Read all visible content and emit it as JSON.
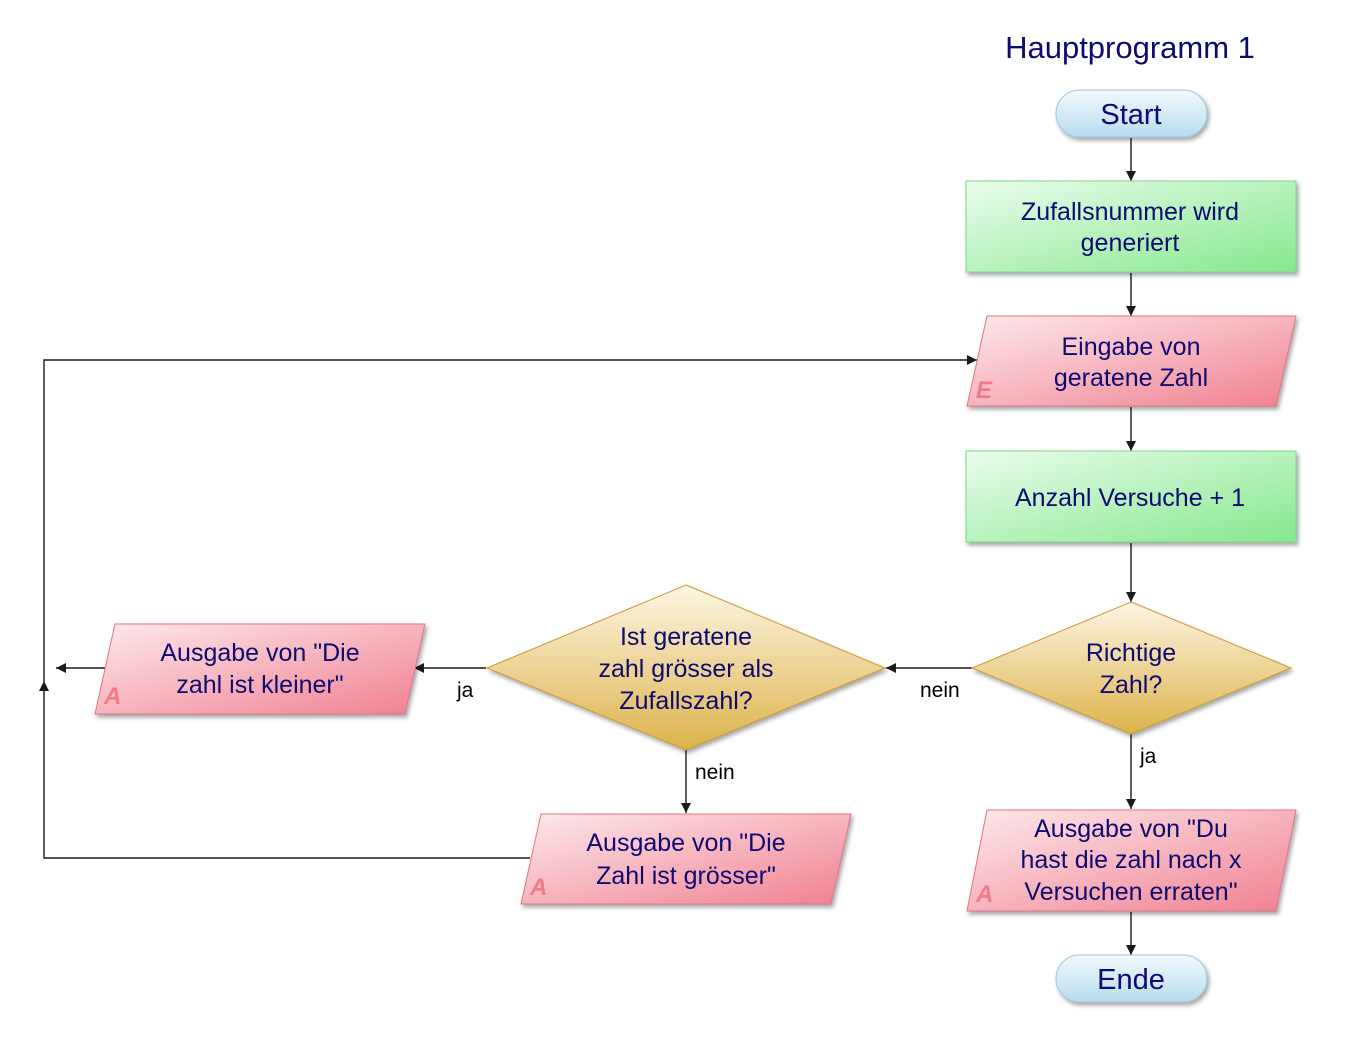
{
  "title": "Hauptprogramm 1",
  "nodes": {
    "start": {
      "label": "Start"
    },
    "generate": {
      "lines": [
        "Zufallsnummer wird",
        "generiert"
      ]
    },
    "input": {
      "lines": [
        "Eingabe von",
        "geratene Zahl"
      ],
      "badge": "E"
    },
    "increment": {
      "lines": [
        "Anzahl Versuche + 1"
      ]
    },
    "decision_correct": {
      "lines": [
        "Richtige",
        "Zahl?"
      ]
    },
    "decision_greater": {
      "lines": [
        "Ist geratene",
        "zahl grösser als",
        "Zufallszahl?"
      ]
    },
    "output_smaller": {
      "lines": [
        "Ausgabe von \"Die",
        "zahl ist kleiner\""
      ],
      "badge": "A"
    },
    "output_greater": {
      "lines": [
        "Ausgabe von \"Die",
        "Zahl ist grösser\""
      ],
      "badge": "A"
    },
    "output_success": {
      "lines": [
        "Ausgabe von \"Du",
        "hast die zahl nach x",
        "Versuchen erraten\""
      ],
      "badge": "A"
    },
    "end": {
      "label": "Ende"
    }
  },
  "edge_labels": {
    "correct_no": "nein",
    "correct_yes": "ja",
    "greater_yes": "ja",
    "greater_no": "nein"
  },
  "colors": {
    "text": "#0d0a72",
    "process_fill": "#9ff0a6",
    "io_fill": "#f58f99",
    "decision_fill": "#e6bd57",
    "terminal_fill": "#c9e6f4",
    "badge": "#f07a86"
  }
}
